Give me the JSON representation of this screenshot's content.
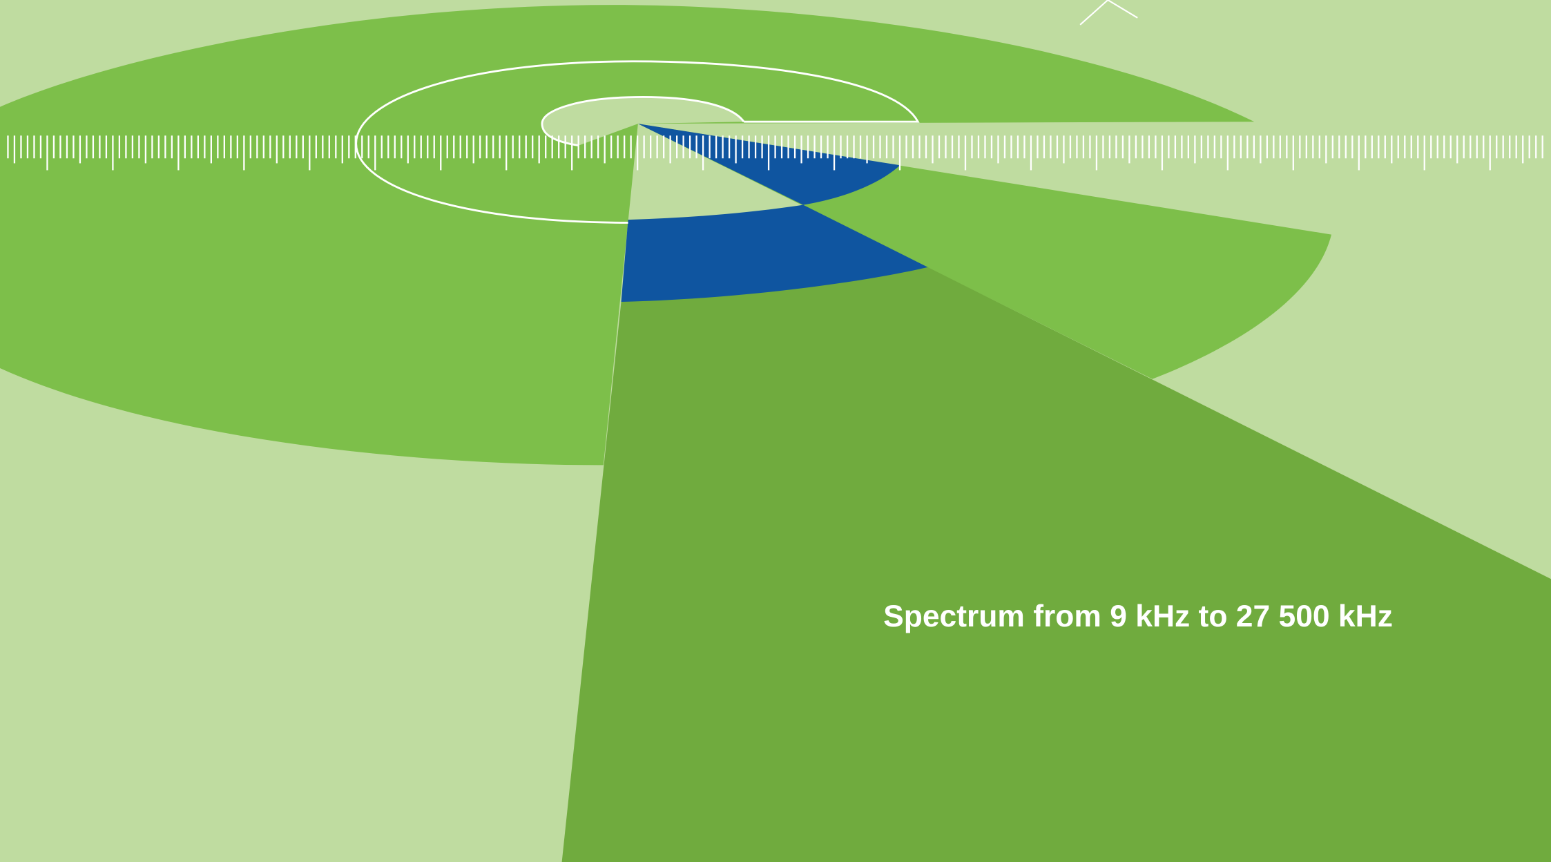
{
  "title": "Spectrum from 9 kHz to 27 500 kHz"
}
